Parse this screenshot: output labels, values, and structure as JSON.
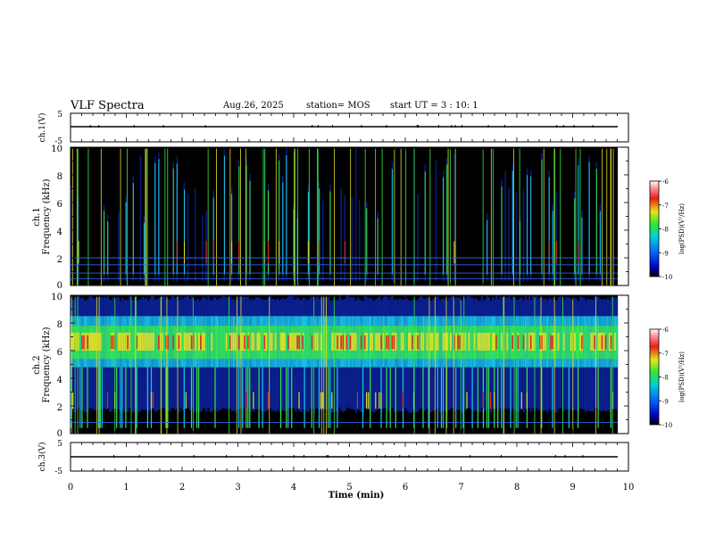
{
  "header": {
    "title": "VLF Spectra",
    "date": "Aug.26, 2025",
    "station": "station= MOS",
    "start_ut": "start  UT =   3 : 10: 1"
  },
  "chart_data": [
    {
      "type": "line",
      "name": "ch1-waveform",
      "ylabel": "ch.1(V)",
      "ylim": [
        -5,
        5
      ],
      "yticks": [
        "5",
        "-5"
      ],
      "xlim": [
        0,
        10
      ],
      "baseline": 0
    },
    {
      "type": "heatmap",
      "name": "ch1-spectrogram",
      "ylabel": "ch.1\nFrequency (kHz)",
      "ylim": [
        0,
        10
      ],
      "yticks": [
        "0",
        "2",
        "4",
        "6",
        "8",
        "10"
      ],
      "xlim": [
        0,
        10
      ],
      "colorbar": {
        "label": "log(PSD)(V²/Hz)",
        "range": [
          -10,
          -6
        ],
        "ticks": [
          "-6",
          "-7",
          "-8",
          "-9",
          "-10"
        ]
      }
    },
    {
      "type": "heatmap",
      "name": "ch2-spectrogram",
      "ylabel": "ch.2\nFrequency (kHz)",
      "ylim": [
        0,
        10
      ],
      "yticks": [
        "0",
        "2",
        "4",
        "6",
        "8",
        "10"
      ],
      "xlim": [
        0,
        10
      ],
      "colorbar": {
        "label": "log(PSD)(V²/Hz)",
        "range": [
          -10,
          -6
        ],
        "ticks": [
          "-6",
          "-7",
          "-8",
          "-9",
          "-10"
        ]
      }
    },
    {
      "type": "line",
      "name": "ch3-waveform",
      "ylabel": "ch.3(V)",
      "ylim": [
        -5,
        5
      ],
      "yticks": [
        "5",
        "-5"
      ],
      "xlim": [
        0,
        10
      ],
      "baseline": 0
    }
  ],
  "xaxis": {
    "label": "Time  (min)",
    "ticks": [
      "0",
      "1",
      "2",
      "3",
      "4",
      "5",
      "6",
      "7",
      "8",
      "9",
      "10"
    ]
  },
  "colors": {
    "background": "#000000",
    "noise": "#0a1e8c",
    "cyan": "#19c8e6",
    "green": "#37e646",
    "yellow": "#dcdc28",
    "red": "#e6281e",
    "hum_line": "#2873ff"
  }
}
